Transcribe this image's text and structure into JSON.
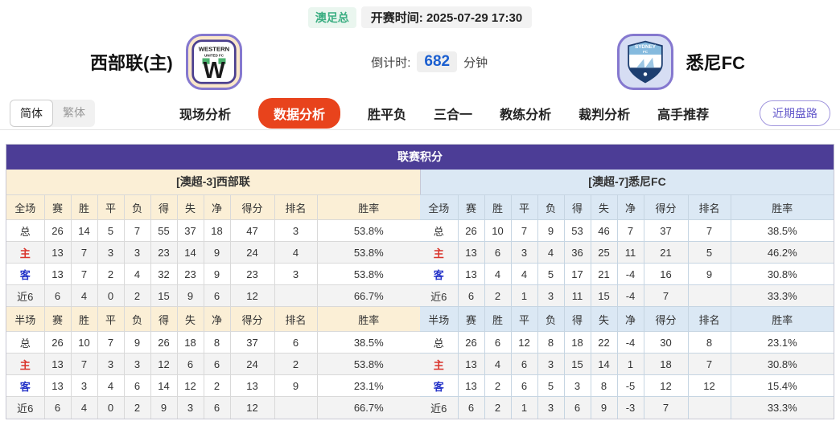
{
  "colors": {
    "accent_red": "#e8431c",
    "purple": "#4c3d96",
    "cream": "#fbefd6",
    "light_blue": "#dbe8f4",
    "badge_green": "#3bae82",
    "countdown_blue": "#1b5fd0"
  },
  "top_bar": {
    "league_badge": "澳足总",
    "kickoff_label": "开赛时间:",
    "kickoff_time": "2025-07-29 17:30"
  },
  "header": {
    "home_team": "西部联(主)",
    "away_team": "悉尼FC",
    "home_logo_line1": "WESTERN",
    "home_logo_line2": "UNITED FC",
    "home_logo_letter": "W",
    "away_logo_line1": "SYDNEY",
    "away_logo_line2": "FC",
    "countdown_label": "倒计时:",
    "countdown_value": "682",
    "countdown_unit": "分钟"
  },
  "nav": {
    "lang_simplified": "简体",
    "lang_traditional": "繁体",
    "tabs": [
      {
        "label": "现场分析",
        "active": false
      },
      {
        "label": "数据分析",
        "active": true
      },
      {
        "label": "胜平负",
        "active": false
      },
      {
        "label": "三合一",
        "active": false
      },
      {
        "label": "教练分析",
        "active": false
      },
      {
        "label": "裁判分析",
        "active": false
      },
      {
        "label": "高手推荐",
        "active": false
      }
    ],
    "recent_trend_button": "近期盘路"
  },
  "table": {
    "title": "联赛积分",
    "home": {
      "header": "[澳超-3]西部联",
      "full": {
        "columns": [
          "全场",
          "赛",
          "胜",
          "平",
          "负",
          "得",
          "失",
          "净",
          "得分",
          "排名",
          "胜率"
        ],
        "rows": [
          [
            "总",
            "26",
            "14",
            "5",
            "7",
            "55",
            "37",
            "18",
            "47",
            "3",
            "53.8%"
          ],
          [
            "主",
            "13",
            "7",
            "3",
            "3",
            "23",
            "14",
            "9",
            "24",
            "4",
            "53.8%"
          ],
          [
            "客",
            "13",
            "7",
            "2",
            "4",
            "32",
            "23",
            "9",
            "23",
            "3",
            "53.8%"
          ],
          [
            "近6",
            "6",
            "4",
            "0",
            "2",
            "15",
            "9",
            "6",
            "12",
            "",
            "66.7%"
          ]
        ]
      },
      "half": {
        "columns": [
          "半场",
          "赛",
          "胜",
          "平",
          "负",
          "得",
          "失",
          "净",
          "得分",
          "排名",
          "胜率"
        ],
        "rows": [
          [
            "总",
            "26",
            "10",
            "7",
            "9",
            "26",
            "18",
            "8",
            "37",
            "6",
            "38.5%"
          ],
          [
            "主",
            "13",
            "7",
            "3",
            "3",
            "12",
            "6",
            "6",
            "24",
            "2",
            "53.8%"
          ],
          [
            "客",
            "13",
            "3",
            "4",
            "6",
            "14",
            "12",
            "2",
            "13",
            "9",
            "23.1%"
          ],
          [
            "近6",
            "6",
            "4",
            "0",
            "2",
            "9",
            "3",
            "6",
            "12",
            "",
            "66.7%"
          ]
        ]
      }
    },
    "away": {
      "header": "[澳超-7]悉尼FC",
      "full": {
        "columns": [
          "全场",
          "赛",
          "胜",
          "平",
          "负",
          "得",
          "失",
          "净",
          "得分",
          "排名",
          "胜率"
        ],
        "rows": [
          [
            "总",
            "26",
            "10",
            "7",
            "9",
            "53",
            "46",
            "7",
            "37",
            "7",
            "38.5%"
          ],
          [
            "主",
            "13",
            "6",
            "3",
            "4",
            "36",
            "25",
            "11",
            "21",
            "5",
            "46.2%"
          ],
          [
            "客",
            "13",
            "4",
            "4",
            "5",
            "17",
            "21",
            "-4",
            "16",
            "9",
            "30.8%"
          ],
          [
            "近6",
            "6",
            "2",
            "1",
            "3",
            "11",
            "15",
            "-4",
            "7",
            "",
            "33.3%"
          ]
        ]
      },
      "half": {
        "columns": [
          "半场",
          "赛",
          "胜",
          "平",
          "负",
          "得",
          "失",
          "净",
          "得分",
          "排名",
          "胜率"
        ],
        "rows": [
          [
            "总",
            "26",
            "6",
            "12",
            "8",
            "18",
            "22",
            "-4",
            "30",
            "8",
            "23.1%"
          ],
          [
            "主",
            "13",
            "4",
            "6",
            "3",
            "15",
            "14",
            "1",
            "18",
            "7",
            "30.8%"
          ],
          [
            "客",
            "13",
            "2",
            "6",
            "5",
            "3",
            "8",
            "-5",
            "12",
            "12",
            "15.4%"
          ],
          [
            "近6",
            "6",
            "2",
            "1",
            "3",
            "6",
            "9",
            "-3",
            "7",
            "",
            "33.3%"
          ]
        ]
      }
    }
  }
}
